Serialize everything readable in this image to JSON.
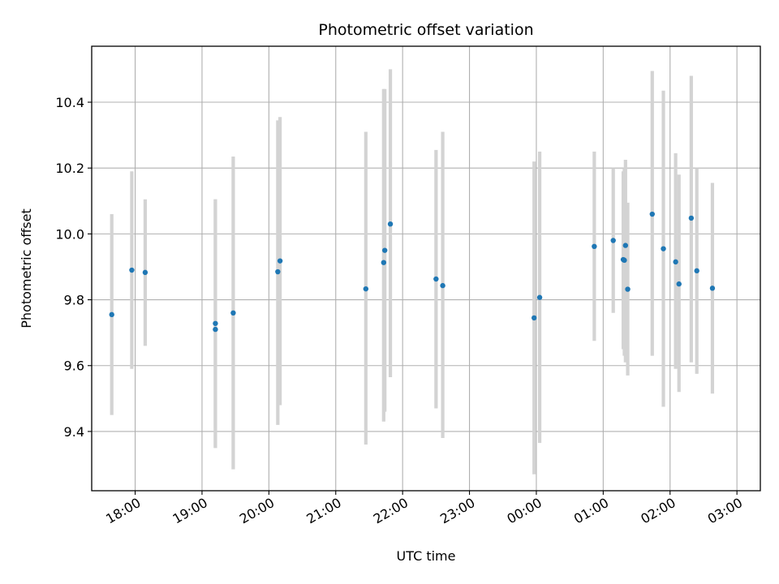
{
  "chart_data": {
    "type": "scatter",
    "title": "Photometric offset variation",
    "xlabel": "UTC time",
    "ylabel": "Photometric offset",
    "grid": true,
    "errorbar_color": "#d3d3d3",
    "marker_color": "#1f77b4",
    "xlim_hours_since_17": [
      0.35,
      10.35
    ],
    "xlim": [
      "17:21",
      "03:21"
    ],
    "ylim": [
      9.22,
      10.57
    ],
    "x_ticks": [
      "18:00",
      "19:00",
      "20:00",
      "21:00",
      "22:00",
      "23:00",
      "00:00",
      "01:00",
      "02:00",
      "03:00"
    ],
    "y_ticks": [
      "9.4",
      "9.6",
      "9.8",
      "10.0",
      "10.2",
      "10.4"
    ],
    "points": [
      {
        "t": "17:39",
        "y": 9.755,
        "lo": 9.45,
        "hi": 10.06
      },
      {
        "t": "17:57",
        "y": 9.89,
        "lo": 9.59,
        "hi": 10.19
      },
      {
        "t": "18:09",
        "y": 9.883,
        "lo": 9.66,
        "hi": 10.105
      },
      {
        "t": "19:12",
        "y": 9.71,
        "lo": 9.35,
        "hi": 10.105
      },
      {
        "t": "19:12",
        "y": 9.728,
        "lo": 9.35,
        "hi": 10.105
      },
      {
        "t": "19:28",
        "y": 9.76,
        "lo": 9.285,
        "hi": 10.235
      },
      {
        "t": "20:08",
        "y": 9.885,
        "lo": 9.42,
        "hi": 10.345
      },
      {
        "t": "20:10",
        "y": 9.918,
        "lo": 9.48,
        "hi": 10.355
      },
      {
        "t": "21:27",
        "y": 9.833,
        "lo": 9.36,
        "hi": 10.31
      },
      {
        "t": "21:43",
        "y": 9.913,
        "lo": 9.43,
        "hi": 10.44
      },
      {
        "t": "21:44",
        "y": 9.95,
        "lo": 9.46,
        "hi": 10.44
      },
      {
        "t": "21:49",
        "y": 10.03,
        "lo": 9.565,
        "hi": 10.5
      },
      {
        "t": "22:30",
        "y": 9.863,
        "lo": 9.47,
        "hi": 10.255
      },
      {
        "t": "22:36",
        "y": 9.843,
        "lo": 9.38,
        "hi": 10.31
      },
      {
        "t": "23:58",
        "y": 9.745,
        "lo": 9.27,
        "hi": 10.22
      },
      {
        "t": "00:03",
        "y": 9.807,
        "lo": 9.365,
        "hi": 10.25
      },
      {
        "t": "00:52",
        "y": 9.962,
        "lo": 9.675,
        "hi": 10.25
      },
      {
        "t": "01:09",
        "y": 9.98,
        "lo": 9.76,
        "hi": 10.2
      },
      {
        "t": "01:18",
        "y": 9.922,
        "lo": 9.65,
        "hi": 10.19
      },
      {
        "t": "01:19",
        "y": 9.92,
        "lo": 9.63,
        "hi": 10.2
      },
      {
        "t": "01:20",
        "y": 9.965,
        "lo": 9.61,
        "hi": 10.225
      },
      {
        "t": "01:22",
        "y": 9.832,
        "lo": 9.57,
        "hi": 10.095
      },
      {
        "t": "01:44",
        "y": 10.06,
        "lo": 9.63,
        "hi": 10.495
      },
      {
        "t": "01:54",
        "y": 9.955,
        "lo": 9.475,
        "hi": 10.435
      },
      {
        "t": "02:05",
        "y": 9.915,
        "lo": 9.59,
        "hi": 10.245
      },
      {
        "t": "02:08",
        "y": 9.848,
        "lo": 9.52,
        "hi": 10.18
      },
      {
        "t": "02:19",
        "y": 10.048,
        "lo": 9.61,
        "hi": 10.48
      },
      {
        "t": "02:24",
        "y": 9.888,
        "lo": 9.575,
        "hi": 10.2
      },
      {
        "t": "02:38",
        "y": 9.835,
        "lo": 9.515,
        "hi": 10.155
      }
    ]
  }
}
